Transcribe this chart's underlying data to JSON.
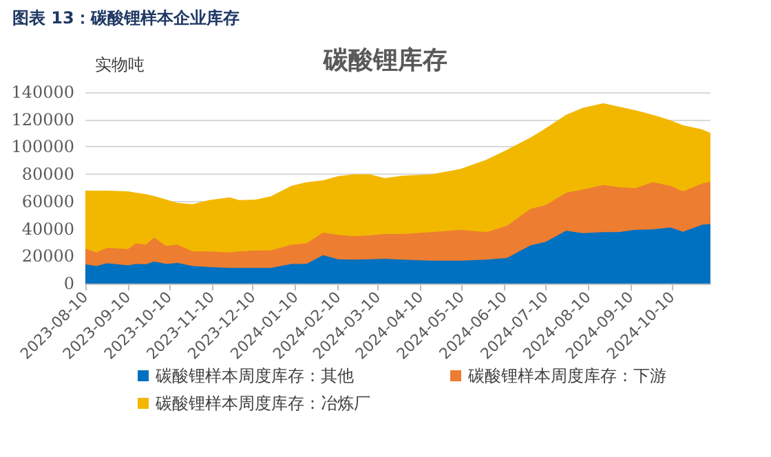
{
  "chart_data": {
    "type": "area",
    "title": "图表 13：碳酸锂样本企业库存",
    "subtitle": "碳酸锂库存",
    "ylabel": "实物吨",
    "stacked": true,
    "legend": "bottom",
    "grid": "y",
    "x": [
      "2023-08-10",
      "2023-08-18",
      "2023-08-26",
      "2023-09-10",
      "2023-09-16",
      "2023-09-23",
      "2023-09-29",
      "2023-10-08",
      "2023-10-16",
      "2023-10-27",
      "2023-11-08",
      "2023-11-23",
      "2023-11-30",
      "2023-12-12",
      "2023-12-23",
      "2024-01-07",
      "2024-01-18",
      "2024-01-30",
      "2024-02-10",
      "2024-02-21",
      "2024-03-04",
      "2024-03-15",
      "2024-03-28",
      "2024-04-18",
      "2024-05-09",
      "2024-05-28",
      "2024-06-12",
      "2024-06-29",
      "2024-07-10",
      "2024-07-25",
      "2024-08-06",
      "2024-08-21",
      "2024-09-01",
      "2024-09-13",
      "2024-09-26",
      "2024-10-09",
      "2024-10-18",
      "2024-11-01",
      "2024-11-07"
    ],
    "series": [
      {
        "name": "碳酸锂样本周度库存：其他",
        "color": "#0070c0",
        "values": [
          14100,
          12800,
          14800,
          13400,
          14400,
          14100,
          16100,
          14400,
          15100,
          12800,
          12100,
          11400,
          11400,
          11400,
          11400,
          14400,
          14400,
          20800,
          17800,
          17500,
          17800,
          18100,
          17500,
          16800,
          16800,
          17500,
          18800,
          27900,
          30500,
          38600,
          36900,
          37600,
          37600,
          39300,
          39600,
          41000,
          37900,
          43000,
          43600
        ]
      },
      {
        "name": "碳酸锂样本周度库存：下游",
        "color": "#ed7d31",
        "values": [
          11400,
          10000,
          11400,
          11800,
          15100,
          14400,
          17500,
          13100,
          13400,
          10700,
          11400,
          11400,
          12100,
          12800,
          12800,
          14100,
          15100,
          16500,
          17800,
          17100,
          17400,
          18200,
          18800,
          20800,
          22500,
          20100,
          23500,
          26800,
          26900,
          27900,
          31900,
          34600,
          32900,
          30500,
          34600,
          30500,
          29600,
          30200,
          30900
        ]
      },
      {
        "name": "碳酸锂样本周度库存：冶炼厂",
        "color": "#f2b800",
        "values": [
          42500,
          45200,
          41800,
          42300,
          37000,
          37000,
          30500,
          33900,
          30600,
          34600,
          37600,
          40300,
          37600,
          37200,
          39600,
          43000,
          44700,
          38200,
          43000,
          45300,
          44700,
          40900,
          42600,
          42300,
          44600,
          53000,
          55700,
          52100,
          56100,
          57000,
          59800,
          59700,
          59100,
          57100,
          49300,
          48000,
          48300,
          39600,
          35600
        ]
      }
    ],
    "xlim": [
      "2023-08-10",
      "2024-11-07"
    ],
    "xticks": [
      "2023-08-10",
      "2023-09-10",
      "2023-10-10",
      "2023-11-10",
      "2023-12-10",
      "2024-01-10",
      "2024-02-10",
      "2024-03-10",
      "2024-04-10",
      "2024-05-10",
      "2024-06-10",
      "2024-07-10",
      "2024-08-10",
      "2024-09-10",
      "2024-10-10"
    ],
    "ylim": [
      0,
      140000
    ],
    "yticks": [
      0,
      20000,
      40000,
      60000,
      80000,
      100000,
      120000,
      140000
    ]
  }
}
